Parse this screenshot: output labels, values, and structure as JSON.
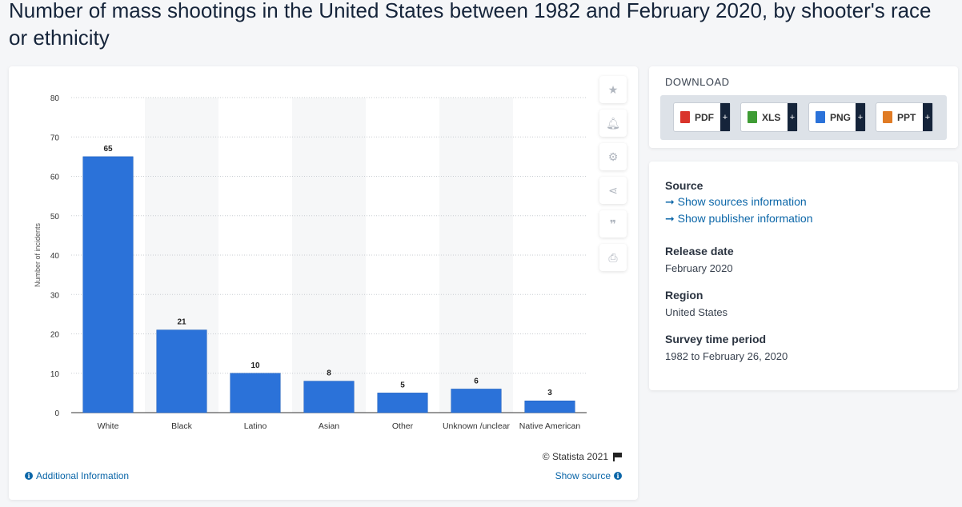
{
  "page": {
    "title": "Number of mass shootings in the United States between 1982 and February 2020, by shooter's race or ethnicity"
  },
  "chart_data": {
    "type": "bar",
    "categories": [
      "White",
      "Black",
      "Latino",
      "Asian",
      "Other",
      "Unknown /unclear",
      "Native American"
    ],
    "values": [
      65,
      21,
      10,
      8,
      5,
      6,
      3
    ],
    "xlabel": "",
    "ylabel": "Number of incidents",
    "ylim": [
      0,
      80
    ],
    "yticks": [
      0,
      10,
      20,
      30,
      40,
      50,
      60,
      70,
      80
    ],
    "grid": true,
    "data_labels": true,
    "bar_color": "#2b72d9"
  },
  "chart_footer": {
    "copyright": "© Statista 2021",
    "additional_info": "Additional Information",
    "show_source": "Show source"
  },
  "toolbar": {
    "icons": [
      "star-icon",
      "bell-icon",
      "gear-icon",
      "share-icon",
      "quote-icon",
      "print-icon"
    ]
  },
  "download": {
    "heading": "DOWNLOAD",
    "buttons": [
      {
        "label": "PDF",
        "color": "#d9342b"
      },
      {
        "label": "XLS",
        "color": "#3f9c35"
      },
      {
        "label": "PNG",
        "color": "#2b72d9"
      },
      {
        "label": "PPT",
        "color": "#e07b24"
      }
    ],
    "plus": "+"
  },
  "info": {
    "source_heading": "Source",
    "show_sources": "➞ Show sources information",
    "show_publisher": "➞ Show publisher information",
    "release_heading": "Release date",
    "release_value": "February 2020",
    "region_heading": "Region",
    "region_value": "United States",
    "period_heading": "Survey time period",
    "period_value": "1982 to February 26, 2020"
  }
}
